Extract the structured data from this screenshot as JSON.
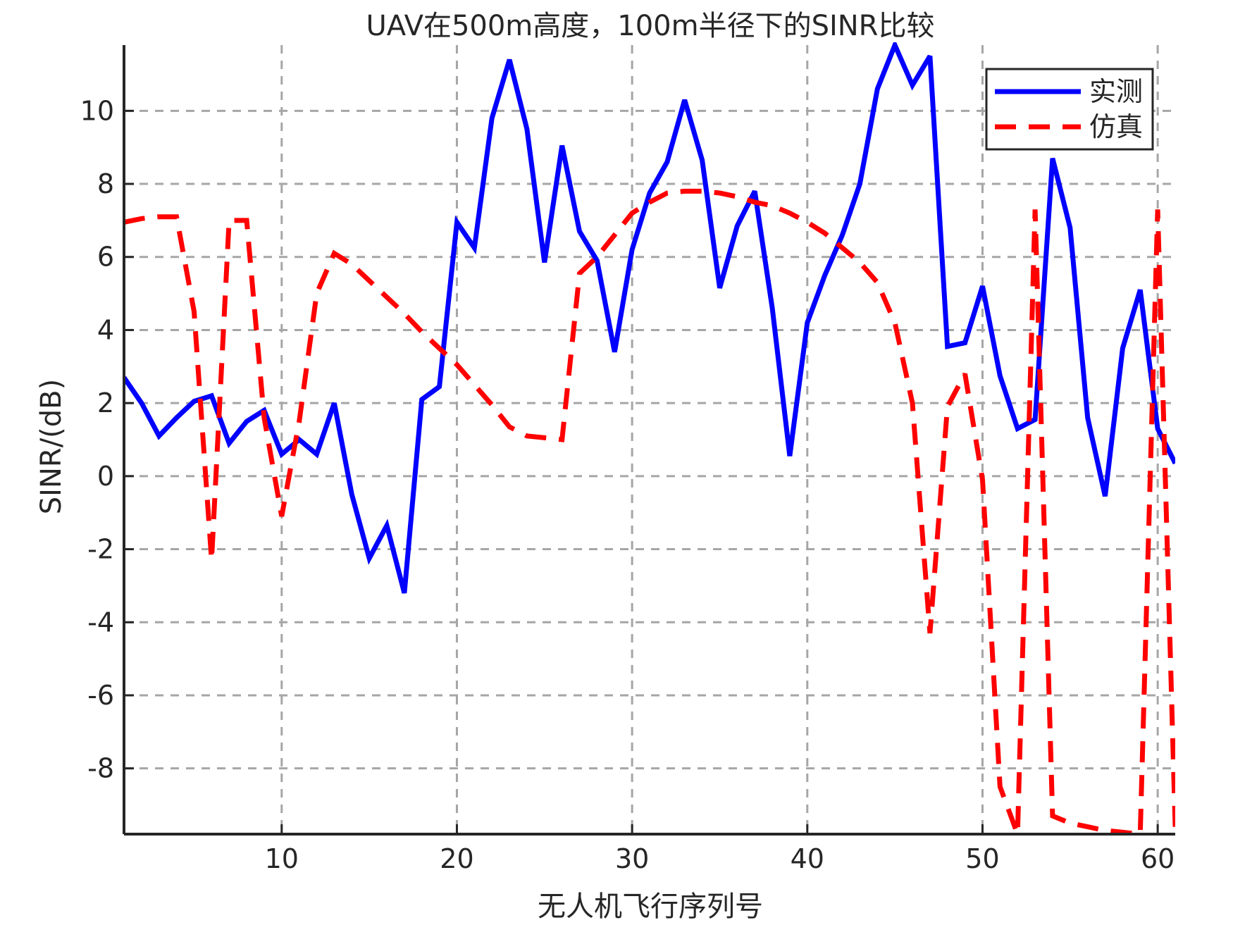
{
  "chart_data": {
    "type": "line",
    "title": "UAV在500m高度，100m半径下的SINR比较",
    "xlabel": "无人机飞行序列号",
    "ylabel": "SINR/(dB)",
    "xlim": [
      1,
      61
    ],
    "ylim": [
      -9.8,
      11.8
    ],
    "xticks": [
      10,
      20,
      30,
      40,
      50,
      60
    ],
    "xtick_labels": [
      "10",
      "20",
      "30",
      "40",
      "50",
      "60"
    ],
    "yticks": [
      -8,
      -6,
      -4,
      -2,
      0,
      2,
      4,
      6,
      8,
      10
    ],
    "ytick_labels": [
      "-8",
      "-6",
      "-4",
      "-2",
      "0",
      "2",
      "4",
      "6",
      "8",
      "10"
    ],
    "grid": true,
    "legend_position": "top-right",
    "series": [
      {
        "name": "实测",
        "color": "#0000ff",
        "style": "solid",
        "x": [
          1,
          2,
          3,
          4,
          5,
          6,
          7,
          8,
          9,
          10,
          11,
          12,
          13,
          14,
          15,
          16,
          17,
          18,
          19,
          20,
          21,
          22,
          23,
          24,
          25,
          26,
          27,
          28,
          29,
          30,
          31,
          32,
          33,
          34,
          35,
          36,
          37,
          38,
          39,
          40,
          41,
          42,
          43,
          44,
          45,
          46,
          47,
          48,
          49,
          50,
          51,
          52,
          53,
          54,
          55,
          56,
          57,
          58,
          59,
          60,
          61
        ],
        "y": [
          2.7,
          2.0,
          1.1,
          1.6,
          2.05,
          2.2,
          0.9,
          1.5,
          1.8,
          0.6,
          1.0,
          0.6,
          2.0,
          -0.5,
          -2.25,
          -1.35,
          -3.2,
          2.1,
          2.45,
          6.95,
          6.25,
          9.8,
          11.4,
          9.5,
          5.85,
          9.05,
          6.7,
          5.9,
          3.4,
          6.2,
          7.75,
          8.6,
          10.3,
          8.65,
          5.15,
          6.85,
          7.8,
          4.6,
          0.55,
          4.2,
          5.5,
          6.6,
          8.0,
          10.6,
          11.8,
          10.7,
          11.5,
          3.55,
          3.65,
          5.2,
          2.75,
          1.3,
          1.55,
          8.7,
          6.8,
          1.6,
          -0.55,
          3.5,
          5.1,
          1.3,
          0.35
        ]
      },
      {
        "name": "仿真",
        "color": "#ff0000",
        "style": "dashed",
        "x": [
          1,
          2,
          3,
          4,
          5,
          6,
          7,
          8,
          9,
          10,
          11,
          12,
          13,
          14,
          15,
          16,
          17,
          18,
          19,
          20,
          21,
          22,
          23,
          24,
          25,
          26,
          27,
          28,
          29,
          30,
          31,
          32,
          33,
          34,
          35,
          36,
          37,
          38,
          39,
          40,
          41,
          42,
          43,
          44,
          45,
          46,
          47,
          48,
          49,
          50,
          51,
          52,
          53,
          54,
          55,
          56,
          57,
          58,
          59,
          60,
          61
        ],
        "y": [
          6.95,
          7.05,
          7.1,
          7.1,
          4.5,
          -2.3,
          7.0,
          7.0,
          1.6,
          -1.1,
          1.5,
          5.0,
          6.1,
          5.8,
          5.35,
          4.9,
          4.45,
          3.95,
          3.5,
          3.05,
          2.5,
          1.95,
          1.35,
          1.1,
          1.05,
          1.0,
          5.55,
          6.0,
          6.6,
          7.2,
          7.5,
          7.75,
          7.8,
          7.8,
          7.75,
          7.65,
          7.5,
          7.4,
          7.2,
          6.95,
          6.65,
          6.25,
          5.85,
          5.3,
          4.2,
          2.0,
          -4.3,
          1.9,
          2.8,
          -0.1,
          -8.5,
          -9.8,
          7.3,
          -9.3,
          -9.5,
          -9.6,
          -9.7,
          -9.75,
          -9.8,
          7.3,
          -9.6
        ]
      }
    ]
  }
}
